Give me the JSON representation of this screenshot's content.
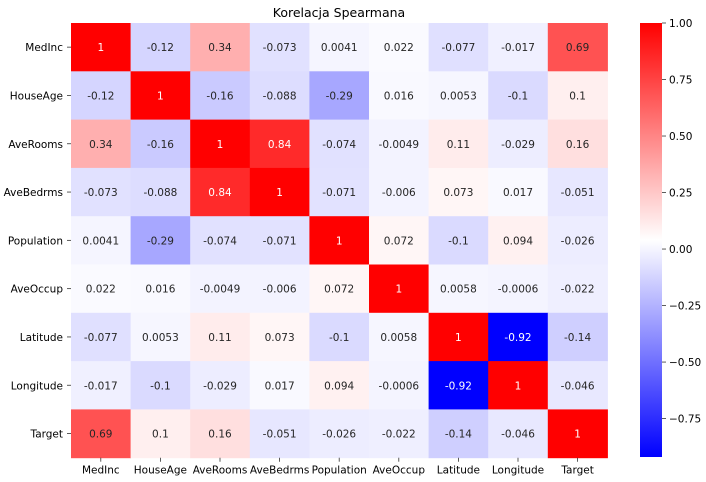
{
  "chart_data": {
    "type": "heatmap",
    "title": "Korelacja Spearmana",
    "x_labels": [
      "MedInc",
      "HouseAge",
      "AveRooms",
      "AveBedrms",
      "Population",
      "AveOccup",
      "Latitude",
      "Longitude",
      "Target"
    ],
    "y_labels": [
      "MedInc",
      "HouseAge",
      "AveRooms",
      "AveBedrms",
      "Population",
      "AveOccup",
      "Latitude",
      "Longitude",
      "Target"
    ],
    "values": [
      [
        1,
        -0.12,
        0.34,
        -0.073,
        0.0041,
        0.022,
        -0.077,
        -0.017,
        0.69
      ],
      [
        -0.12,
        1,
        -0.16,
        -0.088,
        -0.29,
        0.016,
        0.0053,
        -0.1,
        0.1
      ],
      [
        0.34,
        -0.16,
        1,
        0.84,
        -0.074,
        -0.0049,
        0.11,
        -0.029,
        0.16
      ],
      [
        -0.073,
        -0.088,
        0.84,
        1,
        -0.071,
        -0.006,
        0.073,
        0.017,
        -0.051
      ],
      [
        0.0041,
        -0.29,
        -0.074,
        -0.071,
        1,
        0.072,
        -0.1,
        0.094,
        -0.026
      ],
      [
        0.022,
        0.016,
        -0.0049,
        -0.006,
        0.072,
        1,
        0.0058,
        -0.0006,
        -0.022
      ],
      [
        -0.077,
        0.0053,
        0.11,
        0.073,
        -0.1,
        0.0058,
        1,
        -0.92,
        -0.14
      ],
      [
        -0.017,
        -0.1,
        -0.029,
        0.017,
        0.094,
        -0.0006,
        -0.92,
        1,
        -0.046
      ],
      [
        0.69,
        0.1,
        0.16,
        -0.051,
        -0.026,
        -0.022,
        -0.14,
        -0.046,
        1
      ]
    ],
    "colormap": "bwr",
    "colors": {
      "low": "#0000ff",
      "mid": "#ffffff",
      "high": "#ff0000"
    },
    "vmin": -0.92,
    "vmax": 1.0,
    "colorbar_ticks": [
      {
        "value": 1.0,
        "label": "1.00"
      },
      {
        "value": 0.75,
        "label": "0.75"
      },
      {
        "value": 0.5,
        "label": "0.50"
      },
      {
        "value": 0.25,
        "label": "0.25"
      },
      {
        "value": 0.0,
        "label": "0.00"
      },
      {
        "value": -0.25,
        "label": "−0.25"
      },
      {
        "value": -0.5,
        "label": "−0.50"
      },
      {
        "value": -0.75,
        "label": "−0.75"
      }
    ],
    "annotated": true,
    "grid": false
  }
}
